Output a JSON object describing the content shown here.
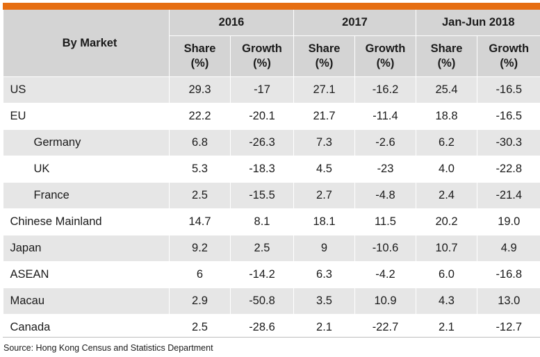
{
  "header": {
    "market_label": "By Market",
    "periods": [
      "2016",
      "2017",
      "Jan-Jun 2018"
    ],
    "share_label_1": "Share",
    "share_label_2": "(%)",
    "growth_label_1": "Growth",
    "growth_label_2": "(%)"
  },
  "rows": [
    {
      "market": "US",
      "v": [
        "29.3",
        "-17",
        "27.1",
        "-16.2",
        "25.4",
        "-16.5"
      ]
    },
    {
      "market": "EU",
      "v": [
        "22.2",
        "-20.1",
        "21.7",
        "-11.4",
        "18.8",
        "-16.5"
      ]
    },
    {
      "market": "Germany",
      "v": [
        "6.8",
        "-26.3",
        "7.3",
        "-2.6",
        "6.2",
        "-30.3"
      ]
    },
    {
      "market": "UK",
      "v": [
        "5.3",
        "-18.3",
        "4.5",
        "-23",
        "4.0",
        "-22.8"
      ]
    },
    {
      "market": "France",
      "v": [
        "2.5",
        "-15.5",
        "2.7",
        "-4.8",
        "2.4",
        "-21.4"
      ]
    },
    {
      "market": "Chinese Mainland",
      "v": [
        "14.7",
        "8.1",
        "18.1",
        "11.5",
        "20.2",
        "19.0"
      ]
    },
    {
      "market": "Japan",
      "v": [
        "9.2",
        "2.5",
        "9",
        "-10.6",
        "10.7",
        "4.9"
      ]
    },
    {
      "market": "ASEAN",
      "v": [
        "6",
        "-14.2",
        "6.3",
        "-4.2",
        "6.0",
        "-16.8"
      ]
    },
    {
      "market": "Macau",
      "v": [
        "2.9",
        "-50.8",
        "3.5",
        "10.9",
        "4.3",
        "13.0"
      ]
    },
    {
      "market": "Canada",
      "v": [
        "2.5",
        "-28.6",
        "2.1",
        "-22.7",
        "2.1",
        "-12.7"
      ]
    }
  ],
  "source": "Source: Hong Kong Census and Statistics Department",
  "colors": {
    "accent_bar": "#e66e12",
    "header_bg": "#d4d4d4",
    "row_shade": "#e6e6e6"
  }
}
